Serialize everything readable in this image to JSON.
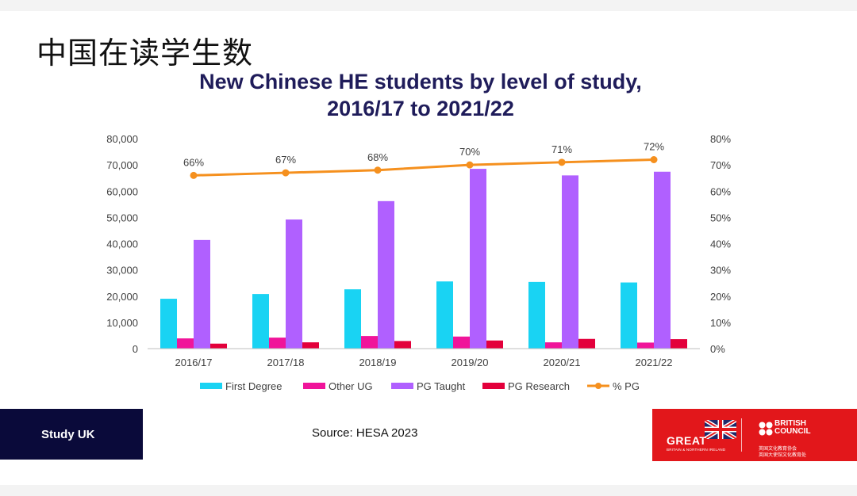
{
  "slide": {
    "title": "中国在读学生数",
    "footer_left": "Study UK",
    "source": "Source: HESA 2023",
    "brand": {
      "great": "GREAT",
      "great_sub": "BRITAIN & NORTHERN IRELAND",
      "council": "BRITISH COUNCIL",
      "council_cn1": "英国文化教育协会",
      "council_cn2": "英国大使馆文化教育处",
      "red": "#e2171b",
      "navy": "#0a0a3a"
    }
  },
  "chart_data": {
    "type": "bar",
    "title": "New Chinese HE students by level of study, 2016/17 to 2021/22",
    "title_lines": [
      "New Chinese HE students by level of study,",
      "2016/17 to 2021/22"
    ],
    "categories": [
      "2016/17",
      "2017/18",
      "2018/19",
      "2019/20",
      "2020/21",
      "2021/22"
    ],
    "ylim": [
      0,
      80000
    ],
    "y_ticks": [
      "0",
      "10,000",
      "20,000",
      "30,000",
      "40,000",
      "50,000",
      "60,000",
      "70,000",
      "80,000"
    ],
    "y2lim": [
      0,
      80
    ],
    "y2_ticks": [
      "0%",
      "10%",
      "20%",
      "30%",
      "40%",
      "50%",
      "60%",
      "70%",
      "80%"
    ],
    "grid": false,
    "legend_position": "bottom",
    "series": [
      {
        "name": "First Degree",
        "type": "bar",
        "color": "#19d3f3",
        "values": [
          19000,
          20800,
          22600,
          25600,
          25400,
          25200
        ]
      },
      {
        "name": "Other UG",
        "type": "bar",
        "color": "#f0149a",
        "values": [
          3900,
          4200,
          4800,
          4600,
          2400,
          2300
        ]
      },
      {
        "name": "PG Taught",
        "type": "bar",
        "color": "#b060ff",
        "values": [
          41400,
          49200,
          56200,
          68500,
          66000,
          67400
        ]
      },
      {
        "name": "PG Research",
        "type": "bar",
        "color": "#e3003b",
        "values": [
          1900,
          2400,
          2900,
          3100,
          3700,
          3600
        ]
      },
      {
        "name": "% PG",
        "type": "line",
        "axis": "right",
        "color": "#f5901e",
        "values": [
          66,
          67,
          68,
          70,
          71,
          72
        ],
        "labels": [
          "66%",
          "67%",
          "68%",
          "70%",
          "71%",
          "72%"
        ]
      }
    ]
  }
}
